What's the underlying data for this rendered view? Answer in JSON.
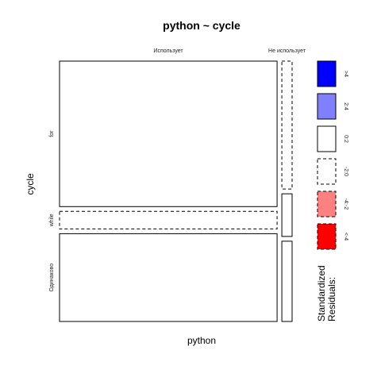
{
  "chart_data": {
    "type": "mosaic",
    "title": "python ~ cycle",
    "xlabel": "python",
    "ylabel": "cycle",
    "column_categories": [
      "Использует",
      "Не использует"
    ],
    "row_categories": [
      "for",
      "while",
      "Одинаково"
    ],
    "column_shares": [
      0.955,
      0.045
    ],
    "cells": [
      {
        "column": "Использует",
        "row": "for",
        "share": 0.58,
        "residual_class": "0:2"
      },
      {
        "column": "Использует",
        "row": "while",
        "share": 0.07,
        "residual_class": "-2:0"
      },
      {
        "column": "Использует",
        "row": "Одинаково",
        "share": 0.35,
        "residual_class": "0:2"
      },
      {
        "column": "Не использует",
        "row": "for",
        "share": 0.51,
        "residual_class": "-2:0"
      },
      {
        "column": "Не использует",
        "row": "while",
        "share": 0.17,
        "residual_class": "0:2"
      },
      {
        "column": "Не использует",
        "row": "Одинаково",
        "share": 0.32,
        "residual_class": "0:2"
      }
    ],
    "legend": {
      "title_lines": [
        "Standardized",
        "Residuals:"
      ],
      "entries": [
        {
          "label": ">4",
          "fill": "#0000ff",
          "dashed": false
        },
        {
          "label": "2:4",
          "fill": "#8080ff",
          "dashed": false
        },
        {
          "label": "0:2",
          "fill": "#ffffff",
          "dashed": false
        },
        {
          "label": "-2:0",
          "fill": "#ffffff",
          "dashed": true
        },
        {
          "label": "-4:-2",
          "fill": "#ff8080",
          "dashed": true
        },
        {
          "label": "<-4",
          "fill": "#ff0000",
          "dashed": true
        }
      ]
    }
  }
}
